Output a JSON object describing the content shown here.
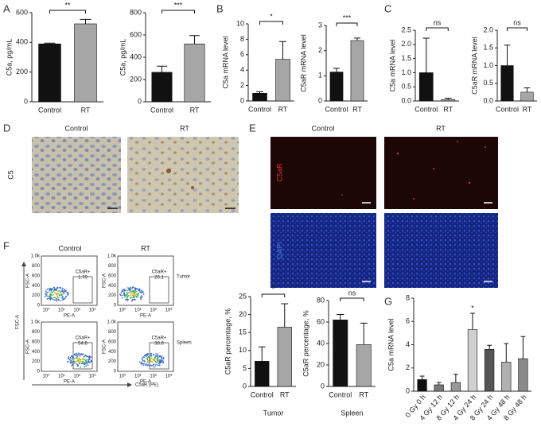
{
  "labels": [
    "A",
    "B",
    "C",
    "D",
    "E",
    "F",
    "G"
  ],
  "ihc": {
    "columns": [
      "Control",
      "RT"
    ],
    "stain": "C5"
  },
  "if": {
    "columns": [
      "Control",
      "RT"
    ],
    "rows": [
      "C5aR",
      "DAPI"
    ]
  },
  "flow": {
    "columns": [
      "Control",
      "RT"
    ],
    "rows": [
      "Tumor",
      "Spleen"
    ],
    "gate_label": "C5aR+",
    "gates": [
      [
        "1.70",
        "25.1"
      ],
      [
        "54.8",
        "38.6"
      ]
    ],
    "ylabel": "FSC-A",
    "xlabel": "PE-A",
    "yticks": [
      "1.0k",
      "800",
      "600",
      "400",
      "200",
      "0"
    ],
    "xticks": [
      "10⁰",
      "10¹",
      "10²",
      "10³"
    ],
    "axis_ylabel": "FSC-A",
    "axis_xlabel": "C5aR (PE)"
  },
  "chart_data": [
    {
      "type": "bar",
      "ylabel": "C5a, pg/mL",
      "categories": [
        "Control",
        "RT"
      ],
      "values": [
        390,
        525
      ],
      "errors": [
        5,
        30
      ],
      "colors": [
        "#111111",
        "#a6a6a6"
      ],
      "ylim": [
        0,
        600
      ],
      "yticks": [
        0,
        200,
        400,
        600
      ],
      "annotations": [
        {
          "text": "**",
          "from": 0,
          "to": 1
        }
      ]
    },
    {
      "type": "bar",
      "ylabel": "C5a, pg/mL",
      "categories": [
        "Control",
        "RT"
      ],
      "values": [
        265,
        520
      ],
      "errors": [
        55,
        75
      ],
      "colors": [
        "#111111",
        "#a6a6a6"
      ],
      "ylim": [
        0,
        800
      ],
      "yticks": [
        0,
        200,
        400,
        600,
        800
      ],
      "annotations": [
        {
          "text": "***",
          "from": 0,
          "to": 1
        }
      ]
    },
    {
      "type": "bar",
      "ylabel": "C5a mRNA level",
      "categories": [
        "Control",
        "RT"
      ],
      "values": [
        1.0,
        5.4
      ],
      "errors": [
        0.2,
        2.3
      ],
      "colors": [
        "#111111",
        "#a6a6a6"
      ],
      "ylim": [
        0,
        10
      ],
      "yticks": [
        0,
        2,
        4,
        6,
        8,
        10
      ],
      "annotations": [
        {
          "text": "*",
          "from": 0,
          "to": 1
        }
      ]
    },
    {
      "type": "bar",
      "ylabel": "C5aR mRNA level",
      "categories": [
        "Control",
        "RT"
      ],
      "values": [
        1.15,
        2.4
      ],
      "errors": [
        0.15,
        0.1
      ],
      "colors": [
        "#111111",
        "#a6a6a6"
      ],
      "ylim": [
        0,
        3
      ],
      "yticks": [
        0,
        1,
        2,
        3
      ],
      "annotations": [
        {
          "text": "***",
          "from": 0,
          "to": 1
        }
      ]
    },
    {
      "type": "bar",
      "ylabel": "C5a mRNA level",
      "categories": [
        "Control",
        "RT"
      ],
      "values": [
        1.0,
        0.05
      ],
      "errors": [
        1.22,
        0.05
      ],
      "colors": [
        "#111111",
        "#a6a6a6"
      ],
      "ylim": [
        0,
        2.5
      ],
      "yticks": [
        {
          "value": 0,
          "label": "0.0"
        },
        0.5,
        {
          "value": 1,
          "label": "1.0"
        },
        1.5,
        {
          "value": 2,
          "label": "2.0"
        },
        2.5
      ],
      "annotations": [
        {
          "text": "ns",
          "from": 0,
          "to": 1
        }
      ]
    },
    {
      "type": "bar",
      "ylabel": "C5aR mRNA level",
      "categories": [
        "Control",
        "RT"
      ],
      "values": [
        1.0,
        0.25
      ],
      "errors": [
        0.58,
        0.12
      ],
      "colors": [
        "#111111",
        "#a6a6a6"
      ],
      "ylim": [
        0,
        2
      ],
      "yticks": [
        {
          "value": 0,
          "label": "0.0"
        },
        0.5,
        {
          "value": 1,
          "label": "1.0"
        },
        1.5,
        {
          "value": 2,
          "label": "2.0"
        }
      ],
      "annotations": [
        {
          "text": "ns",
          "from": 0,
          "to": 1
        }
      ]
    },
    {
      "type": "bar",
      "ylabel": "C5aR percentage, %",
      "xlabel": "Tumor",
      "categories": [
        "Control",
        "RT"
      ],
      "values": [
        7,
        16.5
      ],
      "errors": [
        4,
        6.5
      ],
      "colors": [
        "#111111",
        "#a6a6a6"
      ],
      "ylim": [
        0,
        25
      ],
      "yticks": [
        0,
        5,
        10,
        15,
        20,
        25
      ],
      "annotations": [
        {
          "text": "*",
          "from": 0,
          "to": 1
        }
      ]
    },
    {
      "type": "bar",
      "ylabel": "C5aR percentage, %",
      "xlabel": "Spleen",
      "categories": [
        "Control",
        "RT"
      ],
      "values": [
        62,
        39
      ],
      "errors": [
        5,
        20
      ],
      "colors": [
        "#111111",
        "#a6a6a6"
      ],
      "ylim": [
        0,
        80
      ],
      "yticks": [
        0,
        20,
        40,
        60,
        80
      ],
      "annotations": [
        {
          "text": "ns",
          "from": 0,
          "to": 1
        }
      ]
    },
    {
      "type": "bar",
      "ylabel": "C5a mRNA level",
      "categories": [
        "0 Gy 0 h",
        "4 Gy 12 h",
        "8 Gy 12 h",
        "4 Gy 24 h",
        "8 Gy 24 h",
        "4 Gy 48 h",
        "8 Gy 48 h"
      ],
      "values": [
        1.0,
        0.55,
        0.75,
        5.3,
        3.6,
        2.5,
        2.8
      ],
      "errors": [
        0.3,
        0.2,
        0.7,
        1.4,
        0.35,
        1.6,
        1.9
      ],
      "colors": [
        "#111111",
        "#777777",
        "#999999",
        "#d0d0d0",
        "#555555",
        "#b0b0b0",
        "#8a8a8a"
      ],
      "ylim": [
        0,
        8
      ],
      "yticks": [
        0,
        2,
        4,
        6,
        8
      ],
      "annotations": [
        {
          "text": "*",
          "from": 3,
          "to": 3
        }
      ]
    }
  ]
}
